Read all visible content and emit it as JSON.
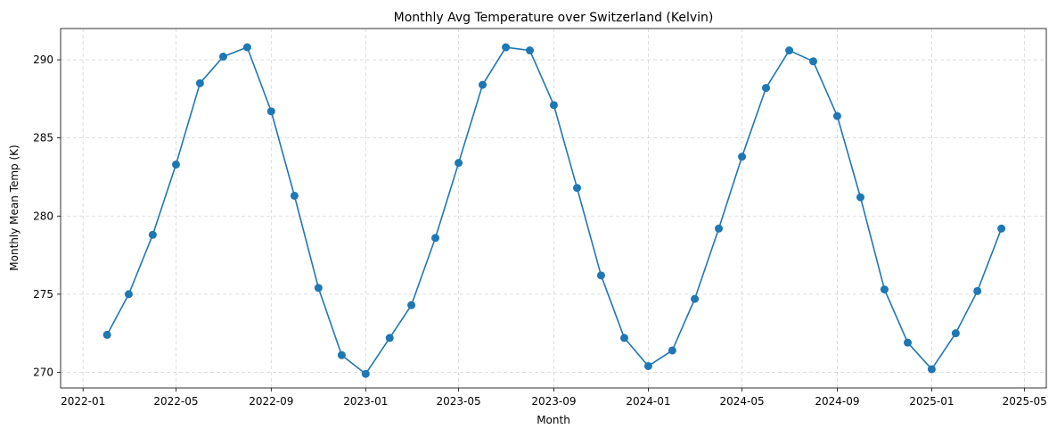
{
  "chart_data": {
    "type": "line",
    "title": "Monthly Avg Temperature over Switzerland (Kelvin)",
    "xlabel": "Month",
    "ylabel": "Monthly Mean Temp (K)",
    "x_type": "date",
    "xlim": [
      "2021-12-03",
      "2025-05-29"
    ],
    "ylim": [
      269.0,
      292.0
    ],
    "x_ticks": [
      "2022-01-01",
      "2022-05-01",
      "2022-09-01",
      "2023-01-01",
      "2023-05-01",
      "2023-09-01",
      "2024-01-01",
      "2024-05-01",
      "2024-09-01",
      "2025-01-01",
      "2025-05-01"
    ],
    "x_tick_labels": [
      "2022-01",
      "2022-05",
      "2022-09",
      "2023-01",
      "2023-05",
      "2023-09",
      "2024-01",
      "2024-05",
      "2024-09",
      "2025-01",
      "2025-05"
    ],
    "y_ticks": [
      270,
      275,
      280,
      285,
      290
    ],
    "y_tick_labels": [
      "270",
      "275",
      "280",
      "285",
      "290"
    ],
    "grid": true,
    "color": "#1f77b4",
    "marker": "circle",
    "series": [
      {
        "x": [
          "2022-02-01",
          "2022-03-01",
          "2022-04-01",
          "2022-05-01",
          "2022-06-01",
          "2022-07-01",
          "2022-08-01",
          "2022-09-01",
          "2022-10-01",
          "2022-11-01",
          "2022-12-01",
          "2023-01-01",
          "2023-02-01",
          "2023-03-01",
          "2023-04-01",
          "2023-05-01",
          "2023-06-01",
          "2023-07-01",
          "2023-08-01",
          "2023-09-01",
          "2023-10-01",
          "2023-11-01",
          "2023-12-01",
          "2024-01-01",
          "2024-02-01",
          "2024-03-01",
          "2024-04-01",
          "2024-05-01",
          "2024-06-01",
          "2024-07-01",
          "2024-08-01",
          "2024-09-01",
          "2024-10-01",
          "2024-11-01",
          "2024-12-01",
          "2025-01-01",
          "2025-02-01",
          "2025-03-01",
          "2025-04-01"
        ],
        "values": [
          272.4,
          275.0,
          278.8,
          283.3,
          288.5,
          290.2,
          290.8,
          286.7,
          281.3,
          275.4,
          271.1,
          269.9,
          272.2,
          274.3,
          278.6,
          283.4,
          288.4,
          290.8,
          290.6,
          287.1,
          281.8,
          276.2,
          272.2,
          270.4,
          271.4,
          274.7,
          279.2,
          283.8,
          288.2,
          290.6,
          289.9,
          286.4,
          281.2,
          275.3,
          271.9,
          270.2,
          272.5,
          275.2,
          279.2
        ]
      }
    ]
  }
}
